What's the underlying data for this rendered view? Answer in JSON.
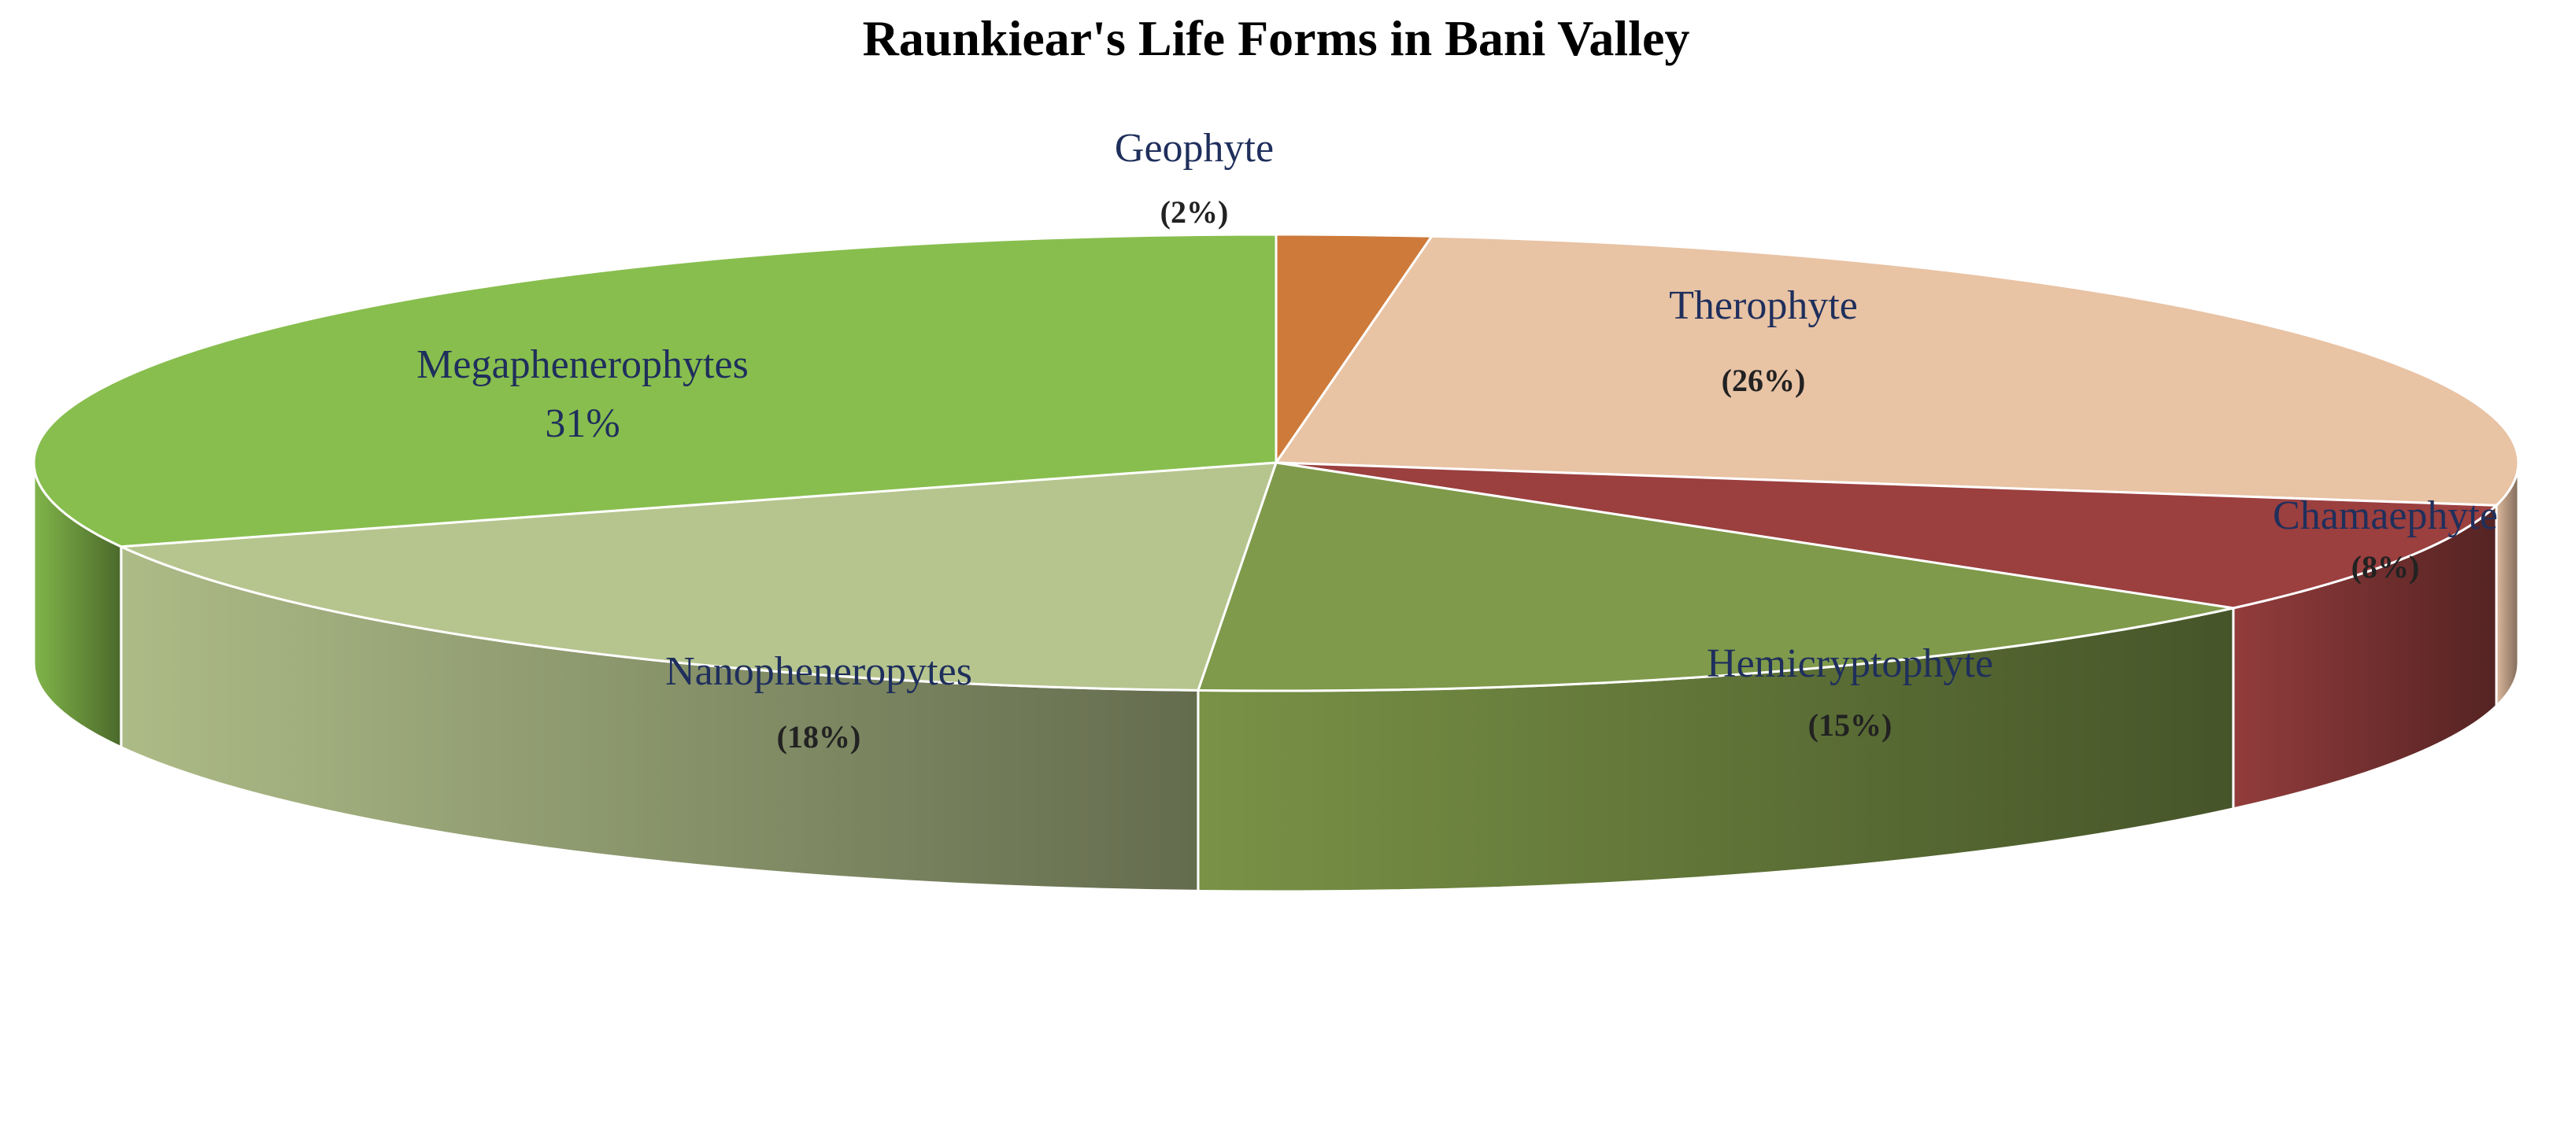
{
  "chart_data": {
    "type": "pie",
    "title": "Raunkiear's Life Forms in Bani Valley",
    "three_d": true,
    "slices": [
      {
        "name": "Geophyte",
        "value": 2,
        "label": "(2%)",
        "color": "#cd7a3a"
      },
      {
        "name": "Therophyte",
        "value": 26,
        "label": "(26%)",
        "color": "#e8c3a4"
      },
      {
        "name": "Chamaephyte",
        "value": 8,
        "label": "(8%)",
        "color": "#9b3f3f"
      },
      {
        "name": "Hemicryptophyte",
        "value": 15,
        "label": "(15%)",
        "color": "#7f9a4a"
      },
      {
        "name": "Nanopheneropytes",
        "value": 18,
        "label": "(18%)",
        "color": "#b6c58e"
      },
      {
        "name": "Megaphenerophytes",
        "value": 31,
        "label": "31%",
        "color": "#88be4e"
      }
    ]
  }
}
